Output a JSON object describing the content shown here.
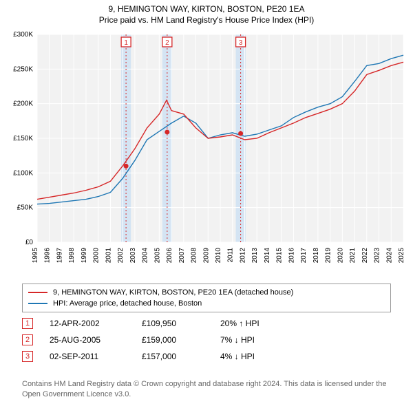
{
  "title_line1": "9, HEMINGTON WAY, KIRTON, BOSTON, PE20 1EA",
  "title_line2": "Price paid vs. HM Land Registry's House Price Index (HPI)",
  "chart": {
    "type": "line",
    "plot_bg": "#f2f2f2",
    "grid_color": "#ffffff",
    "xlim": [
      1995,
      2025
    ],
    "ylim": [
      0,
      300000
    ],
    "ytick_step": 50000,
    "xtick_step": 1,
    "y_axis_fmt_prefix": "£",
    "y_axis_fmt_suffix": "K",
    "x_label_rotation": -90,
    "tick_fontsize": 10,
    "series": {
      "property": {
        "color": "#d62728",
        "linewidth": 1.4,
        "label": "9, HEMINGTON WAY, KIRTON, BOSTON, PE20 1EA (detached house)",
        "x": [
          1995,
          1996,
          1997,
          1998,
          1999,
          2000,
          2001,
          2002,
          2003,
          2004,
          2005,
          2005.6,
          2006,
          2007,
          2008,
          2009,
          2010,
          2011,
          2012,
          2013,
          2014,
          2015,
          2016,
          2017,
          2018,
          2019,
          2020,
          2021,
          2022,
          2023,
          2024,
          2025
        ],
        "y": [
          62000,
          65000,
          68000,
          71000,
          75000,
          80000,
          88000,
          110000,
          135000,
          165000,
          185000,
          205000,
          190000,
          185000,
          165000,
          150000,
          152000,
          155000,
          148000,
          150000,
          158000,
          165000,
          172000,
          180000,
          186000,
          192000,
          200000,
          218000,
          242000,
          248000,
          255000,
          260000
        ]
      },
      "hpi": {
        "color": "#1f77b4",
        "linewidth": 1.4,
        "label": "HPI: Average price, detached house, Boston",
        "x": [
          1995,
          1996,
          1997,
          1998,
          1999,
          2000,
          2001,
          2002,
          2003,
          2004,
          2005,
          2006,
          2007,
          2008,
          2009,
          2010,
          2011,
          2012,
          2013,
          2014,
          2015,
          2016,
          2017,
          2018,
          2019,
          2020,
          2021,
          2022,
          2023,
          2024,
          2025
        ],
        "y": [
          55000,
          56000,
          58000,
          60000,
          62000,
          66000,
          72000,
          92000,
          118000,
          148000,
          160000,
          172000,
          182000,
          172000,
          150000,
          155000,
          158000,
          153000,
          156000,
          162000,
          168000,
          180000,
          188000,
          195000,
          200000,
          210000,
          232000,
          255000,
          258000,
          265000,
          270000
        ]
      }
    },
    "event_bands": [
      {
        "x": 2002.28,
        "span_years": 0.8,
        "band_color": "#cfe2f3"
      },
      {
        "x": 2005.65,
        "span_years": 0.8,
        "band_color": "#cfe2f3"
      },
      {
        "x": 2011.67,
        "span_years": 0.8,
        "band_color": "#cfe2f3"
      }
    ],
    "event_markers": [
      {
        "n": "1",
        "x": 2002.28,
        "y": 109950,
        "line_color": "#d62728",
        "dash": "2,3"
      },
      {
        "n": "2",
        "x": 2005.65,
        "y": 159000,
        "line_color": "#d62728",
        "dash": "2,3"
      },
      {
        "n": "3",
        "x": 2011.67,
        "y": 157000,
        "line_color": "#d62728",
        "dash": "2,3"
      }
    ],
    "marker_badge": {
      "border_color": "#d62728",
      "text_color": "#d62728",
      "fill": "#ffffff",
      "size": 14,
      "fontsize": 10
    },
    "marker_dot": {
      "fill": "#d62728",
      "radius": 3.5
    }
  },
  "legend": {
    "border_color": "#999999",
    "fontsize": 11,
    "items": [
      {
        "color": "#d62728",
        "label": "9, HEMINGTON WAY, KIRTON, BOSTON, PE20 1EA (detached house)"
      },
      {
        "color": "#1f77b4",
        "label": "HPI: Average price, detached house, Boston"
      }
    ]
  },
  "events_table": {
    "rows": [
      {
        "n": "1",
        "date": "12-APR-2002",
        "price": "£109,950",
        "pct": "20% ↑ HPI"
      },
      {
        "n": "2",
        "date": "25-AUG-2005",
        "price": "£159,000",
        "pct": "7% ↓ HPI"
      },
      {
        "n": "3",
        "date": "02-SEP-2011",
        "price": "£157,000",
        "pct": "4% ↓ HPI"
      }
    ]
  },
  "footnote": "Contains HM Land Registry data © Crown copyright and database right 2024. This data is licensed under the Open Government Licence v3.0."
}
